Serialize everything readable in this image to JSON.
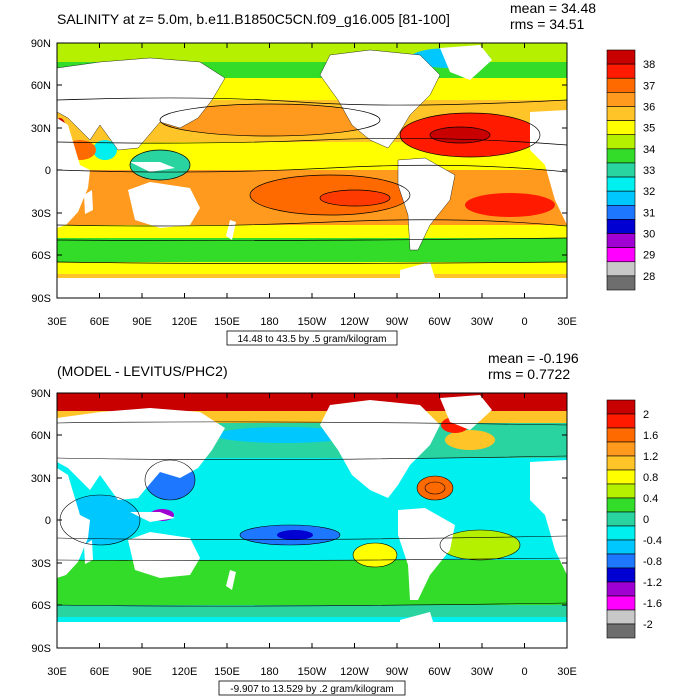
{
  "panels": [
    {
      "title": "SALINITY at z=   5.0m, b.e11.B1850C5CN.f09_g16.005 [81-100]",
      "stats": [
        "mean = 34.48",
        "rms = 34.51"
      ],
      "range_label": "14.48 to 43.5 by .5 gram/kilogram",
      "lat_labels": [
        "90N",
        "60N",
        "30N",
        "0",
        "30S",
        "60S",
        "90S"
      ],
      "lon_labels": [
        "30E",
        "60E",
        "90E",
        "120E",
        "150E",
        "180",
        "150W",
        "120W",
        "90W",
        "60W",
        "30W",
        "0",
        "30E"
      ],
      "colorbar_labels": [
        "38",
        "37",
        "36",
        "35",
        "34",
        "33",
        "32",
        "31",
        "30",
        "29",
        "28"
      ],
      "colorbar_colors": [
        "#c80000",
        "#ff1a00",
        "#ff6a00",
        "#ff9a1e",
        "#ffc428",
        "#ffff00",
        "#b4f000",
        "#32dc28",
        "#2ad4a0",
        "#00f0f0",
        "#00c8ff",
        "#1e78ff",
        "#0000d2",
        "#a000d2",
        "#ff00ff",
        "#c8c8c8",
        "#6e6e6e"
      ]
    },
    {
      "title": "(MODEL - LEVITUS/PHC2)",
      "stats": [
        "mean = -0.196",
        "rms = 0.7722"
      ],
      "range_label": "-9.907 to 13.529 by .2 gram/kilogram",
      "lat_labels": [
        "90N",
        "60N",
        "30N",
        "0",
        "30S",
        "60S",
        "90S"
      ],
      "lon_labels": [
        "30E",
        "60E",
        "90E",
        "120E",
        "150E",
        "180",
        "150W",
        "120W",
        "90W",
        "60W",
        "30W",
        "0",
        "30E"
      ],
      "colorbar_labels": [
        "2",
        "1.6",
        "1.2",
        "0.8",
        "0.4",
        "0",
        "-0.4",
        "-0.8",
        "-1.2",
        "-1.6",
        "-2"
      ],
      "colorbar_colors": [
        "#c80000",
        "#ff1a00",
        "#ff6a00",
        "#ff9a1e",
        "#ffc428",
        "#ffff00",
        "#b4f000",
        "#32dc28",
        "#2ad4a0",
        "#00f0f0",
        "#00c8ff",
        "#1e78ff",
        "#0000d2",
        "#a000d2",
        "#ff00ff",
        "#c8c8c8",
        "#6e6e6e"
      ]
    }
  ],
  "land_color": "#ffffff"
}
